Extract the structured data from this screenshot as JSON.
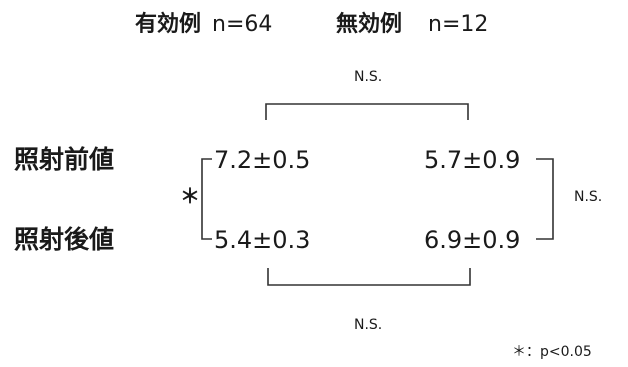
{
  "header": {
    "effective": {
      "label": "有効例",
      "n": "n=64"
    },
    "ineffective": {
      "label": "無効例",
      "n": "n=12"
    }
  },
  "rows": [
    {
      "label": "照射前値",
      "effective_value": "7.2±0.5",
      "ineffective_value": "5.7±0.9"
    },
    {
      "label": "照射後値",
      "effective_value": "5.4±0.3",
      "ineffective_value": "6.9±0.9"
    }
  ],
  "comparisons": {
    "top": "N.S.",
    "bottom": "N.S.",
    "right": "N.S.",
    "left": "＊"
  },
  "footnote": "＊：p<0.05"
}
